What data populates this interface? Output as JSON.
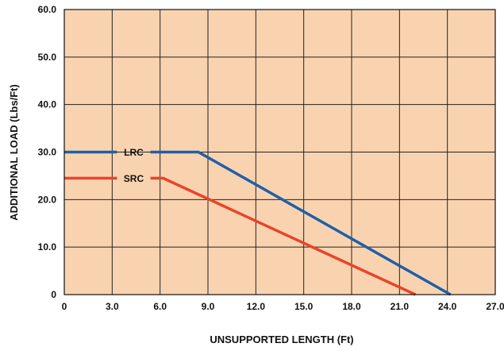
{
  "chart_data": {
    "type": "line",
    "xlabel": "UNSUPPORTED LENGTH (Ft)",
    "ylabel": "ADDITIONAL LOAD (Lbs/Ft)",
    "xlim": [
      0,
      27
    ],
    "ylim": [
      0,
      60
    ],
    "x_ticks": [
      0,
      3,
      6,
      9,
      12,
      15,
      18,
      21,
      24,
      27
    ],
    "x_tick_labels": [
      "0",
      "3.0",
      "6.0",
      "9.0",
      "12.0",
      "15.0",
      "18.0",
      "21.0",
      "24.0",
      "27.0"
    ],
    "y_ticks": [
      0,
      10,
      20,
      30,
      40,
      50,
      60
    ],
    "y_tick_labels": [
      "0",
      "10.0",
      "20.0",
      "30.0",
      "40.0",
      "50.0",
      "60.0"
    ],
    "grid": true,
    "background_color": "#f9d3b0",
    "grid_color": "#222222",
    "series": [
      {
        "name": "LRC",
        "color": "#1f5fa8",
        "x": [
          0,
          8.4,
          24.2
        ],
        "y": [
          30,
          30,
          0
        ]
      },
      {
        "name": "SRC",
        "color": "#e8442a",
        "x": [
          0,
          6.2,
          22
        ],
        "y": [
          24.5,
          24.5,
          0
        ]
      }
    ]
  }
}
